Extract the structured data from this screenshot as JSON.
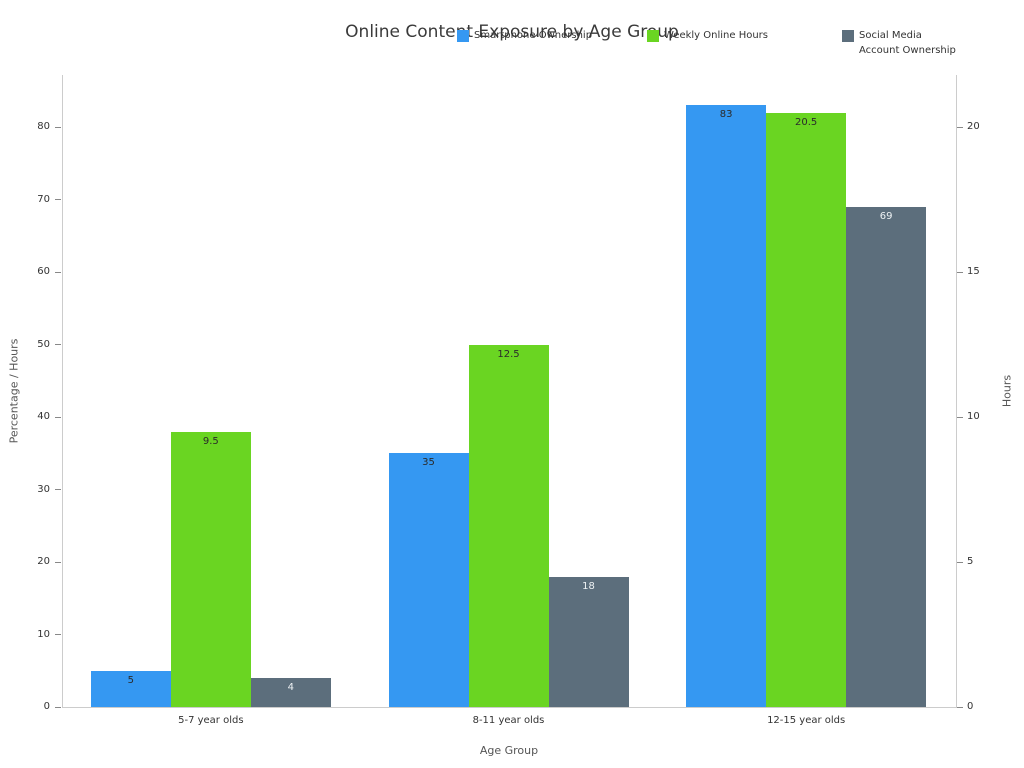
{
  "title": "Online Content Exposure by Age Group",
  "chart_data": {
    "type": "bar",
    "title": "Online Content Exposure by Age Group",
    "categories": [
      "5-7 year olds",
      "8-11 year olds",
      "12-15 year olds"
    ],
    "series": [
      {
        "name": "Smartphone Ownership",
        "axis": "left",
        "color": "#3598f2",
        "values": [
          5,
          35,
          83
        ],
        "labels": [
          "5",
          "35",
          "83"
        ],
        "label_color": "#2b2b2b"
      },
      {
        "name": "Weekly Online Hours",
        "axis": "right",
        "color": "#6ad522",
        "values": [
          9.5,
          12.5,
          20.5
        ],
        "labels": [
          "9.5",
          "12.5",
          "20.5"
        ],
        "label_color": "#2b2b2b"
      },
      {
        "name": "Social Media Account Ownership",
        "axis": "left",
        "color": "#5c6e7c",
        "values": [
          4,
          18,
          69
        ],
        "labels": [
          "4",
          "18",
          "69"
        ],
        "label_color": "#eef2f4"
      }
    ],
    "xlabel": "Age Group",
    "ylabel_left": "Percentage / Hours",
    "ylabel_right": "Hours",
    "left_axis": {
      "min": 0,
      "max": 87.2,
      "ticks": [
        0,
        10,
        20,
        30,
        40,
        50,
        60,
        70,
        80
      ]
    },
    "right_axis": {
      "min": 0,
      "max": 21.8,
      "ticks": [
        0,
        5,
        10,
        15,
        20
      ]
    },
    "right_to_left_scale": 4,
    "grid": false,
    "legend_position": "top"
  },
  "legend": {
    "items": [
      {
        "color": "#3598f2",
        "lines": [
          "Smartphone Ownership"
        ]
      },
      {
        "color": "#6ad522",
        "lines": [
          "Weekly Online Hours"
        ]
      },
      {
        "color": "#5c6e7c",
        "lines": [
          "Social Media",
          "Account Ownership"
        ]
      }
    ]
  },
  "colors": {
    "background": "#ffffff",
    "spine": "#cccccc",
    "tick": "#888888",
    "text": "#333333",
    "muted_text": "#555555"
  }
}
